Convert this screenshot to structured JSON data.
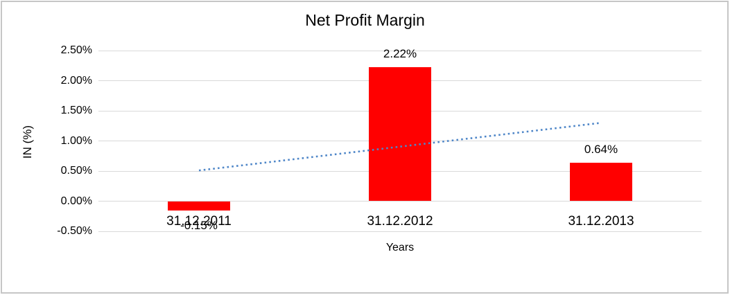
{
  "chart_data": {
    "type": "bar",
    "title": "Net Profit Margin",
    "xlabel": "Years",
    "ylabel": "IN (%)",
    "categories": [
      "31.12.2011",
      "31.12.2012",
      "31.12.2013"
    ],
    "values": [
      -0.15,
      2.22,
      0.64
    ],
    "data_labels": [
      "-0.15%",
      "2.22%",
      "0.64%"
    ],
    "ytick_values": [
      2.5,
      2.0,
      1.5,
      1.0,
      0.5,
      0.0,
      -0.5
    ],
    "ytick_labels": [
      "2.50%",
      "2.00%",
      "1.50%",
      "1.00%",
      "0.50%",
      "0.00%",
      "-0.50%"
    ],
    "ylim": [
      -0.5,
      2.5
    ],
    "grid": true,
    "legend": "none",
    "bar_color": "#ff0000",
    "gridline_color": "#d9d9d9",
    "trendline": {
      "kind": "linear",
      "style": "dotted",
      "color": "#4e86c8",
      "start_value": 0.51,
      "end_value": 1.3
    }
  },
  "frame": {
    "border_color": "#c6c6c6",
    "background": "#ffffff"
  }
}
